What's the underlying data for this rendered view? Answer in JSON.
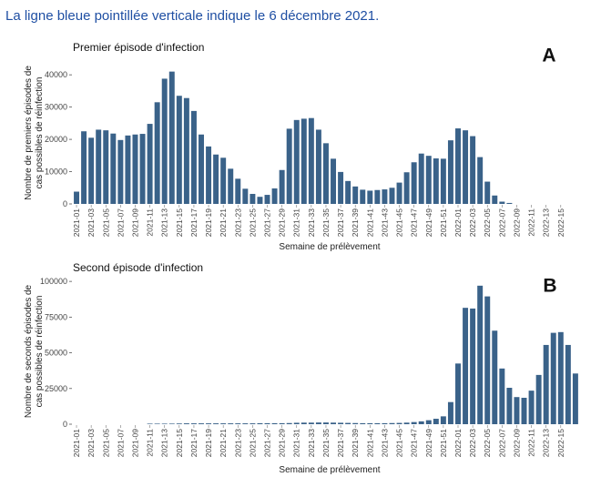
{
  "caption": "La ligne bleue pointillée verticale indique le 6 décembre 2021.",
  "colors": {
    "bar": "#3a6289",
    "caption": "#1f4fa3"
  },
  "chart_data": [
    {
      "type": "bar",
      "panel_label": "A",
      "title": "Premier épisode d'infection",
      "ylabel": "Nombre de premiers épisodes de cas possibles de réinfection",
      "ylabel_lines": [
        "Nombre de premiers épisodes de",
        "cas possibles de réinfection"
      ],
      "xlabel": "Semaine de prélèvement",
      "ylim": [
        0,
        44000
      ],
      "yticks": [
        0,
        10000,
        20000,
        30000,
        40000
      ],
      "x_labels": [
        "2021-01",
        "2021-03",
        "2021-05",
        "2021-07",
        "2021-09",
        "2021-11",
        "2021-13",
        "2021-15",
        "2021-17",
        "2021-19",
        "2021-21",
        "2021-23",
        "2021-25",
        "2021-27",
        "2021-29",
        "2021-31",
        "2021-33",
        "2021-35",
        "2021-37",
        "2021-39",
        "2021-41",
        "2021-43",
        "2021-45",
        "2021-47",
        "2021-49",
        "2021-51",
        "2022-01",
        "2022-03",
        "2022-05",
        "2022-07",
        "2022-09",
        "2022-11",
        "2022-13",
        "2022-15"
      ],
      "values": [
        3800,
        22500,
        20500,
        23000,
        22800,
        21800,
        19800,
        21200,
        21500,
        21700,
        24800,
        31500,
        38800,
        41000,
        33500,
        32800,
        28800,
        21500,
        17800,
        15300,
        14300,
        10900,
        7800,
        4700,
        3100,
        2200,
        2800,
        4800,
        10500,
        23300,
        26000,
        26400,
        26600,
        23000,
        18800,
        14000,
        9900,
        7100,
        5400,
        4400,
        4100,
        4300,
        4500,
        5000,
        6600,
        9800,
        12900,
        15600,
        14900,
        14100,
        14000,
        19700,
        23400,
        22800,
        21000,
        14500,
        6900,
        2600,
        700,
        300,
        0,
        0,
        0,
        0,
        0,
        0,
        0,
        0,
        0,
        0
      ]
    },
    {
      "type": "bar",
      "panel_label": "B",
      "title": "Second épisode d'infection",
      "ylabel": "Nombre de seconds épisodes de cas possibles de réinfection",
      "ylabel_lines": [
        "Nombre de seconds épisodes de",
        "cas possibles de réinfection"
      ],
      "xlabel": "Semaine de prélèvement",
      "ylim": [
        0,
        102000
      ],
      "yticks": [
        0,
        25000,
        50000,
        75000,
        100000
      ],
      "x_labels": [
        "2021-01",
        "2021-03",
        "2021-05",
        "2021-07",
        "2021-09",
        "2021-11",
        "2021-13",
        "2021-15",
        "2021-17",
        "2021-19",
        "2021-21",
        "2021-23",
        "2021-25",
        "2021-27",
        "2021-29",
        "2021-31",
        "2021-33",
        "2021-35",
        "2021-37",
        "2021-39",
        "2021-41",
        "2021-43",
        "2021-45",
        "2021-47",
        "2021-49",
        "2021-51",
        "2022-01",
        "2022-03",
        "2022-05",
        "2022-07",
        "2022-09",
        "2022-11",
        "2022-13",
        "2022-15"
      ],
      "values": [
        0,
        0,
        0,
        0,
        0,
        0,
        0,
        0,
        0,
        0,
        100,
        200,
        300,
        400,
        500,
        600,
        600,
        600,
        600,
        600,
        600,
        600,
        600,
        600,
        600,
        700,
        700,
        700,
        700,
        800,
        1000,
        1100,
        1100,
        1200,
        1200,
        1100,
        1000,
        900,
        800,
        700,
        700,
        700,
        700,
        800,
        900,
        1100,
        1500,
        2000,
        2800,
        3800,
        5500,
        15500,
        42500,
        81500,
        81000,
        97000,
        89500,
        65500,
        39000,
        25500,
        19000,
        18500,
        23500,
        34500,
        55500,
        64000,
        64500,
        55500,
        35500,
        0
      ]
    }
  ]
}
